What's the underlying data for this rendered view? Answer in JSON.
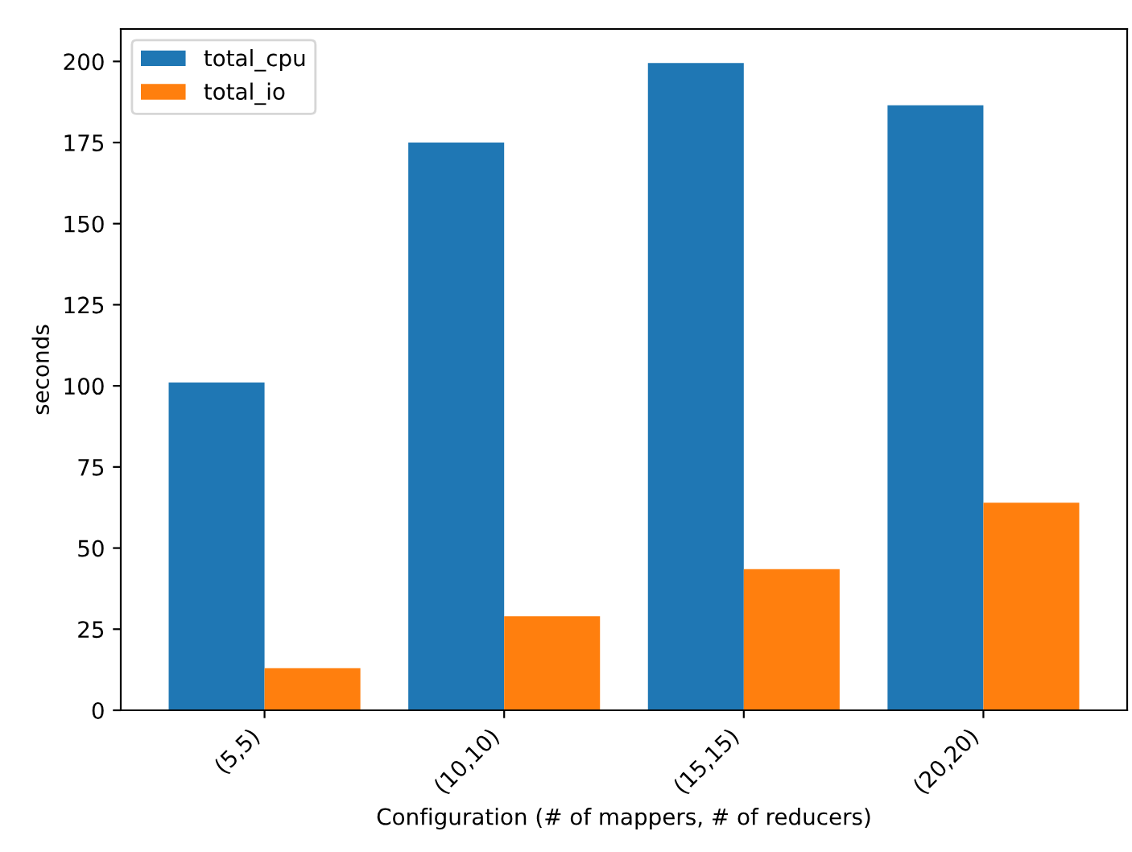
{
  "chart_data": {
    "type": "bar",
    "xlabel": "Configuration (# of mappers, # of reducers)",
    "ylabel": "seconds",
    "categories": [
      "(5,5)",
      "(10,10)",
      "(15,15)",
      "(20,20)"
    ],
    "series": [
      {
        "name": "total_cpu",
        "color": "#1f77b4",
        "values": [
          101,
          175,
          199.5,
          186.5
        ]
      },
      {
        "name": "total_io",
        "color": "#ff7f0e",
        "values": [
          13,
          29,
          43.5,
          64
        ]
      }
    ],
    "ylim": [
      0,
      210
    ],
    "yticks": [
      0,
      25,
      50,
      75,
      100,
      125,
      150,
      175,
      200
    ],
    "legend": "top left",
    "grid": false
  }
}
